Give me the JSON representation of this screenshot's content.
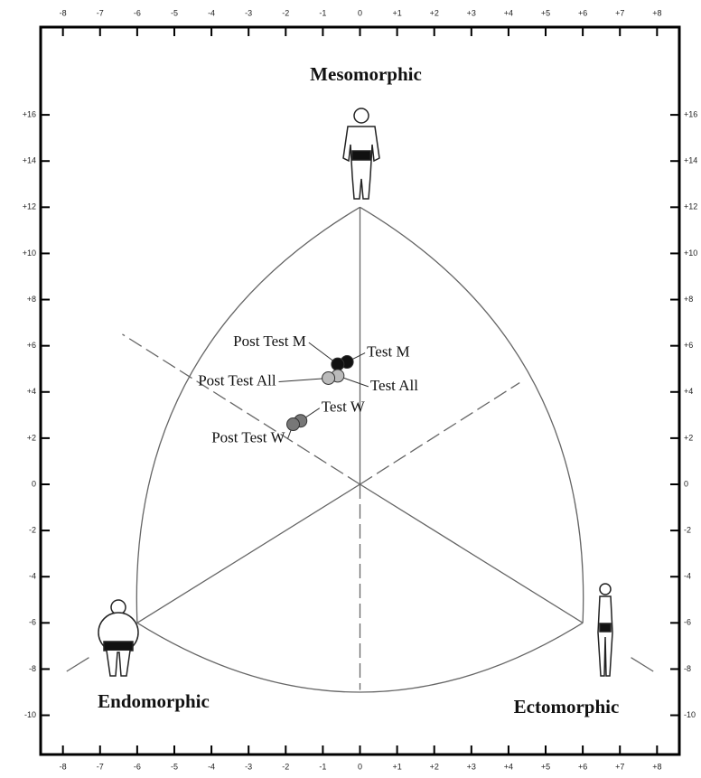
{
  "chart_data": {
    "type": "scatter",
    "annotations": [
      "Mesomorphic",
      "Endomorphic",
      "Ectomorphic"
    ],
    "series": [
      {
        "name": "Test M",
        "color": "#111111",
        "x": [
          -0.35
        ],
        "values": [
          5.3
        ]
      },
      {
        "name": "Post Test M",
        "color": "#111111",
        "x": [
          -0.6
        ],
        "values": [
          5.2
        ]
      },
      {
        "name": "Test All",
        "color": "#bbbbbb",
        "x": [
          -0.6
        ],
        "values": [
          4.7
        ]
      },
      {
        "name": "Post Test All",
        "color": "#bbbbbb",
        "x": [
          -0.85
        ],
        "values": [
          4.6
        ]
      },
      {
        "name": "Test W",
        "color": "#777777",
        "x": [
          -1.6
        ],
        "values": [
          2.75
        ]
      },
      {
        "name": "Post Test W",
        "color": "#777777",
        "x": [
          -1.8
        ],
        "values": [
          2.6
        ]
      }
    ],
    "xlim": [
      -8.6,
      8.6
    ],
    "xticks": [
      -8,
      -7,
      -6,
      -5,
      -4,
      -3,
      -2,
      -1,
      0,
      {
        "value": 1,
        "label": "+1"
      },
      {
        "value": 2,
        "label": "+2"
      },
      {
        "value": 3,
        "label": "+3"
      },
      {
        "value": 4,
        "label": "+4"
      },
      {
        "value": 5,
        "label": "+5"
      },
      {
        "value": 6,
        "label": "+6"
      },
      {
        "value": 7,
        "label": "+7"
      },
      {
        "value": 8,
        "label": "+8"
      }
    ],
    "ylim": [
      -11.7,
      19.8
    ],
    "yticks": [
      -10,
      -8,
      -6,
      -4,
      -2,
      0,
      {
        "value": 2,
        "label": "+2"
      },
      {
        "value": 4,
        "label": "+4"
      },
      {
        "value": 6,
        "label": "+6"
      },
      {
        "value": 8,
        "label": "+8"
      },
      {
        "value": 10,
        "label": "+10"
      },
      {
        "value": 12,
        "label": "+12"
      },
      {
        "value": 14,
        "label": "+14"
      },
      {
        "value": 16,
        "label": "+16"
      }
    ]
  }
}
